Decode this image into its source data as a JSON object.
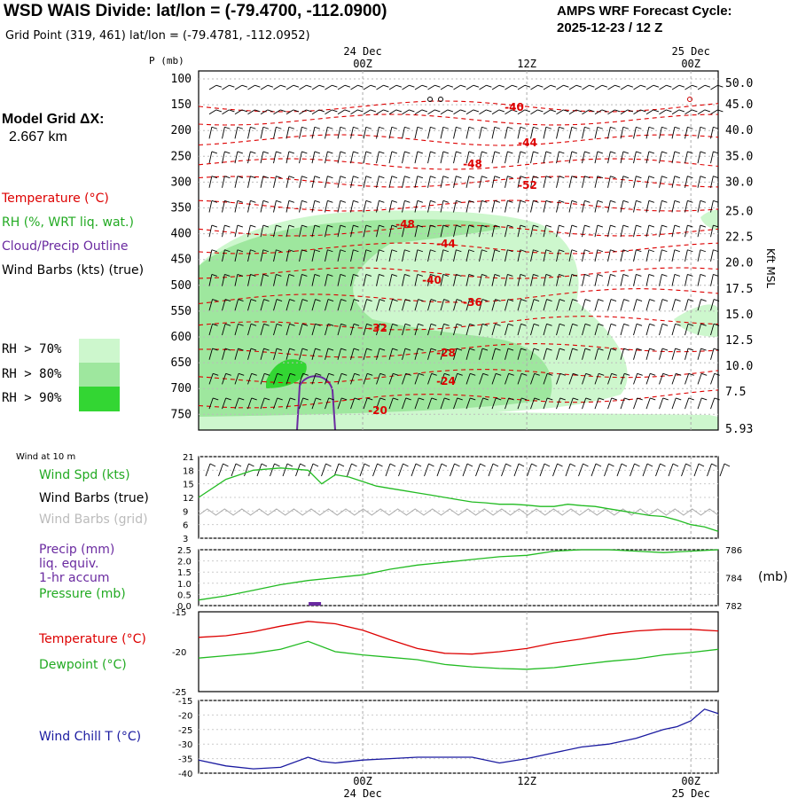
{
  "header": {
    "title": "WSD WAIS Divide:  lat/lon = (-79.4700, -112.0900)",
    "grid_point": "Grid Point (319, 461) lat/lon = (-79.4781, -112.0952)",
    "cycle_label": "AMPS WRF Forecast Cycle:",
    "cycle_value": "2025-12-23 / 12  Z"
  },
  "colors": {
    "temperature": "#dd0000",
    "rh": "#22aa22",
    "cloud": "#6a2aa0",
    "barbs": "#000000",
    "grid_barbs": "#aaaaaa",
    "wind_spd": "#22bb22",
    "windchill": "#1a1aa0",
    "rh70": "#cdf7cd",
    "rh80": "#9ee79e",
    "rh90": "#33d633"
  },
  "upper_panel": {
    "p_label": "P (mb)",
    "kft_label": "Kft MSL",
    "model_grid_label": "Model Grid ΔX:",
    "model_grid_value": "2.667 km",
    "legend": {
      "temperature": "Temperature (°C)",
      "rh": "RH (%, WRT liq. wat.)",
      "cloud": "Cloud/Precip Outline",
      "barbs": "Wind Barbs (kts) (true)",
      "rh70": "RH > 70%",
      "rh80": "RH > 80%",
      "rh90": "RH > 90%"
    }
  },
  "lower_panels": {
    "wind_title": "Wind at 10 m",
    "wind_spd": "Wind Spd (kts)",
    "wind_barbs_true": "Wind Barbs (true)",
    "wind_barbs_grid": "Wind Barbs (grid)",
    "precip_1": "Precip (mm)",
    "precip_2": "liq. equiv.",
    "precip_3": "1-hr accum",
    "pressure": "Pressure (mb)",
    "pressure_unit": "(mb)",
    "temperature": "Temperature (°C)",
    "dewpoint": "Dewpoint (°C)",
    "windchill": "Wind Chill T (°C)"
  },
  "chart_data": {
    "type": "line",
    "time_axis": {
      "top": [
        {
          "day": "24 Dec",
          "hour": "00Z"
        },
        {
          "day": "",
          "hour": "12Z"
        },
        {
          "day": "25 Dec",
          "hour": "00Z"
        }
      ],
      "bottom": [
        {
          "hour": "00Z",
          "day": "24 Dec"
        },
        {
          "hour": "12Z",
          "day": ""
        },
        {
          "hour": "00Z",
          "day": "25 Dec"
        }
      ],
      "range_hours": [
        0,
        38
      ],
      "major_hours": [
        12,
        24,
        36
      ]
    },
    "cross_section": {
      "pressure_ticks": [
        "100",
        "150",
        "200",
        "250",
        "300",
        "350",
        "400",
        "450",
        "500",
        "550",
        "600",
        "650",
        "700",
        "750"
      ],
      "height_ticks_kft": [
        "50.0",
        "45.0",
        "40.0",
        "35.0",
        "30.0",
        "25.0",
        "22.5",
        "20.0",
        "17.5",
        "15.0",
        "12.5",
        "10.0",
        "7.5",
        "5.93"
      ],
      "temperature_labels": [
        "-40",
        "-44",
        "-48",
        "-52",
        "-48",
        "-44",
        "-40",
        "-36",
        "-32",
        "-28",
        "-24",
        "-20"
      ]
    },
    "wind_speed": {
      "y_ticks": [
        "21",
        "18",
        "15",
        "12",
        "9",
        "6",
        "3"
      ],
      "ylim": [
        3,
        21
      ],
      "x": [
        0,
        2,
        4,
        6,
        8,
        9,
        10,
        11,
        12,
        13,
        14,
        15,
        16,
        17,
        18,
        19,
        20,
        21,
        22,
        23,
        24,
        25,
        26,
        27,
        28,
        29,
        30,
        31,
        32,
        33,
        34,
        35,
        36,
        37,
        38
      ],
      "values": [
        12,
        16,
        18,
        18.5,
        18,
        15,
        17,
        16.5,
        15.5,
        14.5,
        14,
        13.5,
        13,
        12.5,
        12,
        11.5,
        11,
        10.8,
        10.5,
        10.5,
        10.3,
        10,
        10,
        10.5,
        10.2,
        10,
        9.5,
        9,
        8.5,
        8,
        7.8,
        7,
        6,
        5.5,
        4.5
      ]
    },
    "precip_pressure": {
      "precip_ticks": [
        "2.5",
        "2.0",
        "1.5",
        "1.0",
        "0.5",
        "0.0"
      ],
      "precip_ylim": [
        0,
        2.5
      ],
      "pressure_ticks": [
        "786",
        "784",
        "782"
      ],
      "pressure_ylim": [
        782,
        786
      ],
      "precip_events": [
        {
          "hour": 8.5,
          "mm": 0.1
        }
      ],
      "pressure_x": [
        0,
        2,
        4,
        6,
        8,
        10,
        12,
        14,
        16,
        18,
        20,
        22,
        24,
        26,
        28,
        30,
        32,
        34,
        36,
        38
      ],
      "pressure_values": [
        782.4,
        782.7,
        783.1,
        783.5,
        783.8,
        784.0,
        784.2,
        784.6,
        784.9,
        785.1,
        785.3,
        785.5,
        785.6,
        785.9,
        786.0,
        786.0,
        785.9,
        785.8,
        785.9,
        786.0
      ]
    },
    "temp_dewpoint": {
      "y_ticks": [
        "-15",
        "-20",
        "-25"
      ],
      "ylim": [
        -25,
        -15
      ],
      "x": [
        0,
        2,
        4,
        6,
        8,
        10,
        12,
        14,
        16,
        18,
        20,
        22,
        24,
        26,
        28,
        30,
        32,
        34,
        36,
        38
      ],
      "temperature": [
        -18.2,
        -18.0,
        -17.5,
        -16.8,
        -16.2,
        -16.5,
        -17.3,
        -18.5,
        -19.6,
        -20.2,
        -20.3,
        -20.0,
        -19.6,
        -18.9,
        -18.4,
        -17.8,
        -17.4,
        -17.2,
        -17.2,
        -17.4
      ],
      "dewpoint": [
        -20.8,
        -20.5,
        -20.2,
        -19.7,
        -18.7,
        -20.0,
        -20.4,
        -20.7,
        -21.0,
        -21.6,
        -21.9,
        -22.1,
        -22.2,
        -22.0,
        -21.6,
        -21.2,
        -20.9,
        -20.4,
        -20.1,
        -19.7
      ]
    },
    "wind_chill": {
      "y_ticks": [
        "-15",
        "-20",
        "-25",
        "-30",
        "-35",
        "-40"
      ],
      "ylim": [
        -40,
        -15
      ],
      "x": [
        0,
        2,
        4,
        6,
        8,
        9,
        10,
        12,
        14,
        16,
        18,
        20,
        22,
        24,
        26,
        28,
        30,
        32,
        34,
        35,
        36,
        37,
        38
      ],
      "values": [
        -35.5,
        -37.5,
        -38.5,
        -38,
        -34.5,
        -36,
        -36.5,
        -35.5,
        -35,
        -34.5,
        -34.5,
        -34.5,
        -36.5,
        -35,
        -33,
        -31,
        -30,
        -28,
        -25,
        -24,
        -22,
        -18,
        -19.5
      ]
    }
  }
}
